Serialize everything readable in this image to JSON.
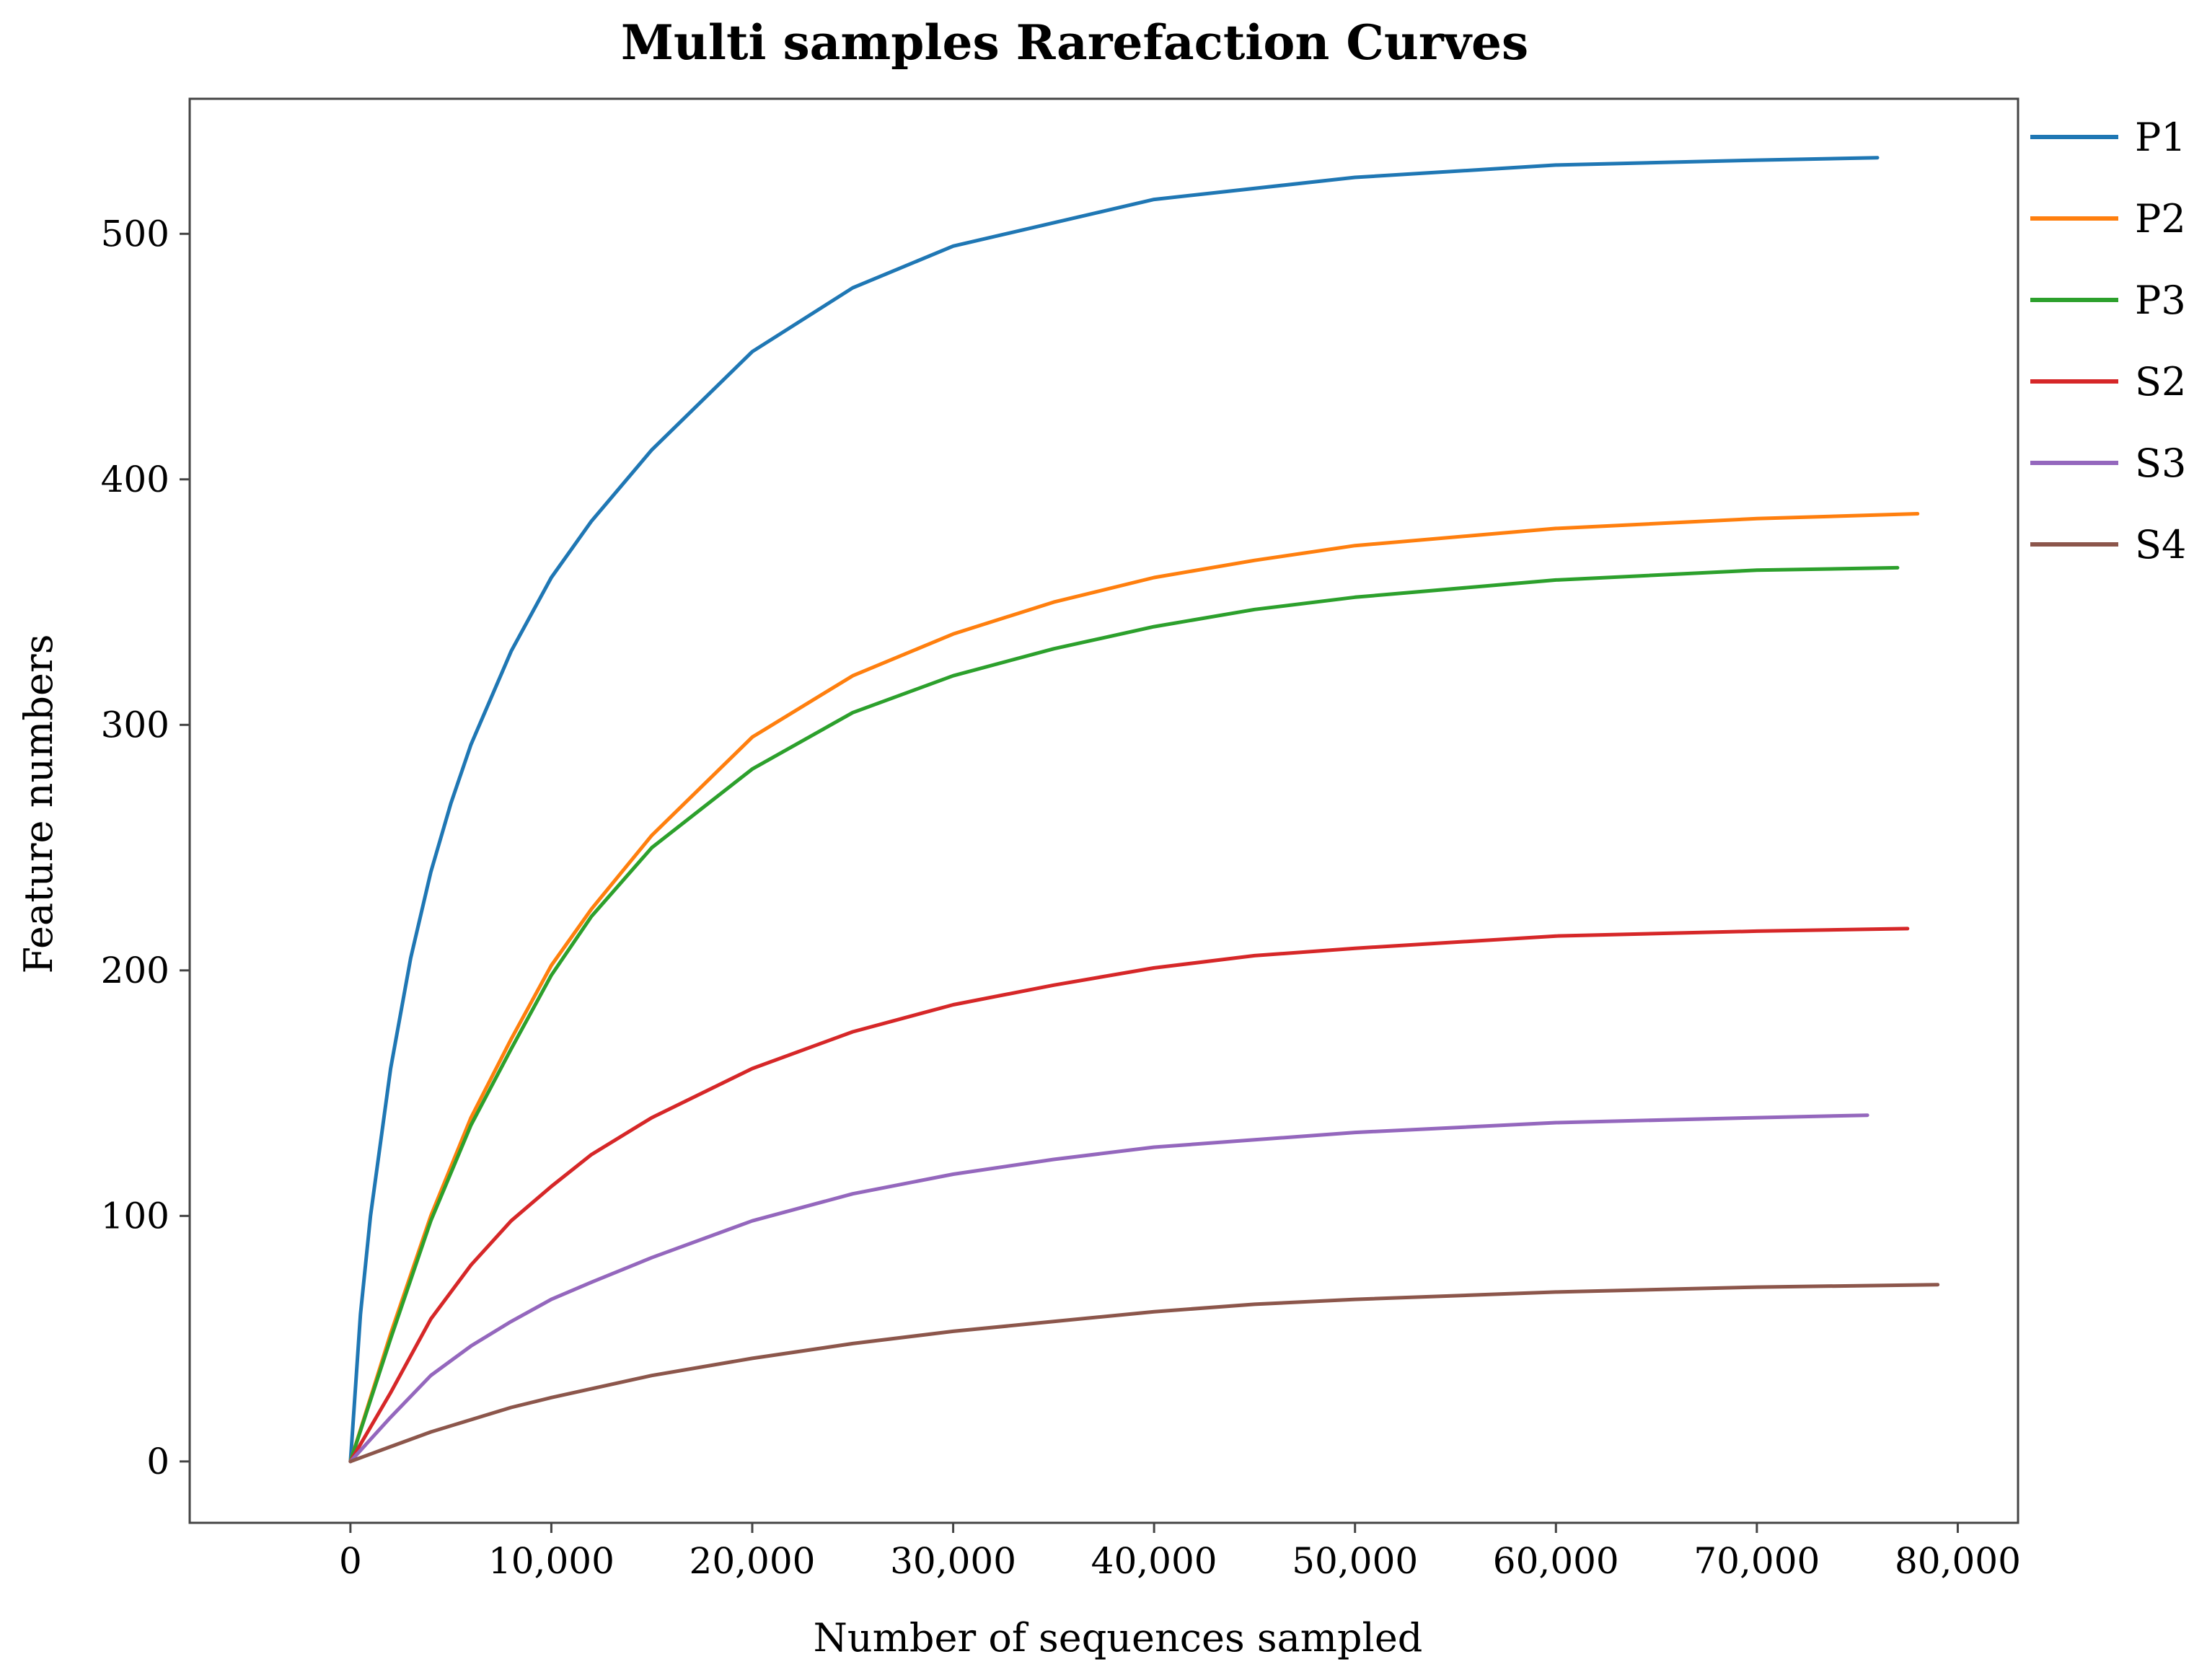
{
  "chart_data": {
    "type": "line",
    "title": "Multi samples Rarefaction Curves",
    "xlabel": "Number of sequences sampled",
    "ylabel": "Feature numbers",
    "xlim": [
      -8000,
      83000
    ],
    "ylim": [
      -25,
      555
    ],
    "x_ticks": [
      0,
      10000,
      20000,
      30000,
      40000,
      50000,
      60000,
      70000,
      80000
    ],
    "x_tick_labels": [
      "0",
      "10,000",
      "20,000",
      "30,000",
      "40,000",
      "50,000",
      "60,000",
      "70,000",
      "80,000"
    ],
    "y_ticks": [
      0,
      100,
      200,
      300,
      400,
      500
    ],
    "y_tick_labels": [
      "0",
      "100",
      "200",
      "300",
      "400",
      "500"
    ],
    "grid": false,
    "legend_position": "outside-right",
    "series": [
      {
        "name": "P1",
        "color": "#1f77b4",
        "x": [
          0,
          500,
          1000,
          2000,
          3000,
          4000,
          5000,
          6000,
          8000,
          10000,
          12000,
          15000,
          20000,
          25000,
          30000,
          40000,
          50000,
          60000,
          70000,
          76000
        ],
        "y": [
          0,
          60,
          100,
          160,
          205,
          240,
          268,
          292,
          330,
          360,
          383,
          412,
          452,
          478,
          495,
          514,
          523,
          528,
          530,
          531
        ]
      },
      {
        "name": "P2",
        "color": "#ff7f0e",
        "x": [
          0,
          2000,
          4000,
          6000,
          8000,
          10000,
          12000,
          15000,
          20000,
          25000,
          30000,
          35000,
          40000,
          45000,
          50000,
          60000,
          70000,
          78000
        ],
        "y": [
          0,
          52,
          100,
          140,
          172,
          202,
          225,
          255,
          295,
          320,
          337,
          350,
          360,
          367,
          373,
          380,
          384,
          386
        ]
      },
      {
        "name": "P3",
        "color": "#2ca02c",
        "x": [
          0,
          2000,
          4000,
          6000,
          8000,
          10000,
          12000,
          15000,
          20000,
          25000,
          30000,
          35000,
          40000,
          45000,
          50000,
          60000,
          70000,
          77000
        ],
        "y": [
          0,
          50,
          98,
          137,
          168,
          198,
          222,
          250,
          282,
          305,
          320,
          331,
          340,
          347,
          352,
          359,
          363,
          364
        ]
      },
      {
        "name": "S2",
        "color": "#d62728",
        "x": [
          0,
          2000,
          4000,
          6000,
          8000,
          10000,
          12000,
          15000,
          20000,
          25000,
          30000,
          35000,
          40000,
          45000,
          50000,
          60000,
          70000,
          77500
        ],
        "y": [
          0,
          28,
          58,
          80,
          98,
          112,
          125,
          140,
          160,
          175,
          186,
          194,
          201,
          206,
          209,
          214,
          216,
          217
        ]
      },
      {
        "name": "S3",
        "color": "#9467bd",
        "x": [
          0,
          2000,
          4000,
          6000,
          8000,
          10000,
          12000,
          15000,
          20000,
          25000,
          30000,
          35000,
          40000,
          45000,
          50000,
          60000,
          70000,
          75500
        ],
        "y": [
          0,
          18,
          35,
          47,
          57,
          66,
          73,
          83,
          98,
          109,
          117,
          123,
          128,
          131,
          134,
          138,
          140,
          141
        ]
      },
      {
        "name": "S4",
        "color": "#8c564b",
        "x": [
          0,
          2000,
          4000,
          6000,
          8000,
          10000,
          15000,
          20000,
          25000,
          30000,
          35000,
          40000,
          45000,
          50000,
          60000,
          70000,
          79000
        ],
        "y": [
          0,
          6,
          12,
          17,
          22,
          26,
          35,
          42,
          48,
          53,
          57,
          61,
          64,
          66,
          69,
          71,
          72
        ]
      }
    ]
  }
}
